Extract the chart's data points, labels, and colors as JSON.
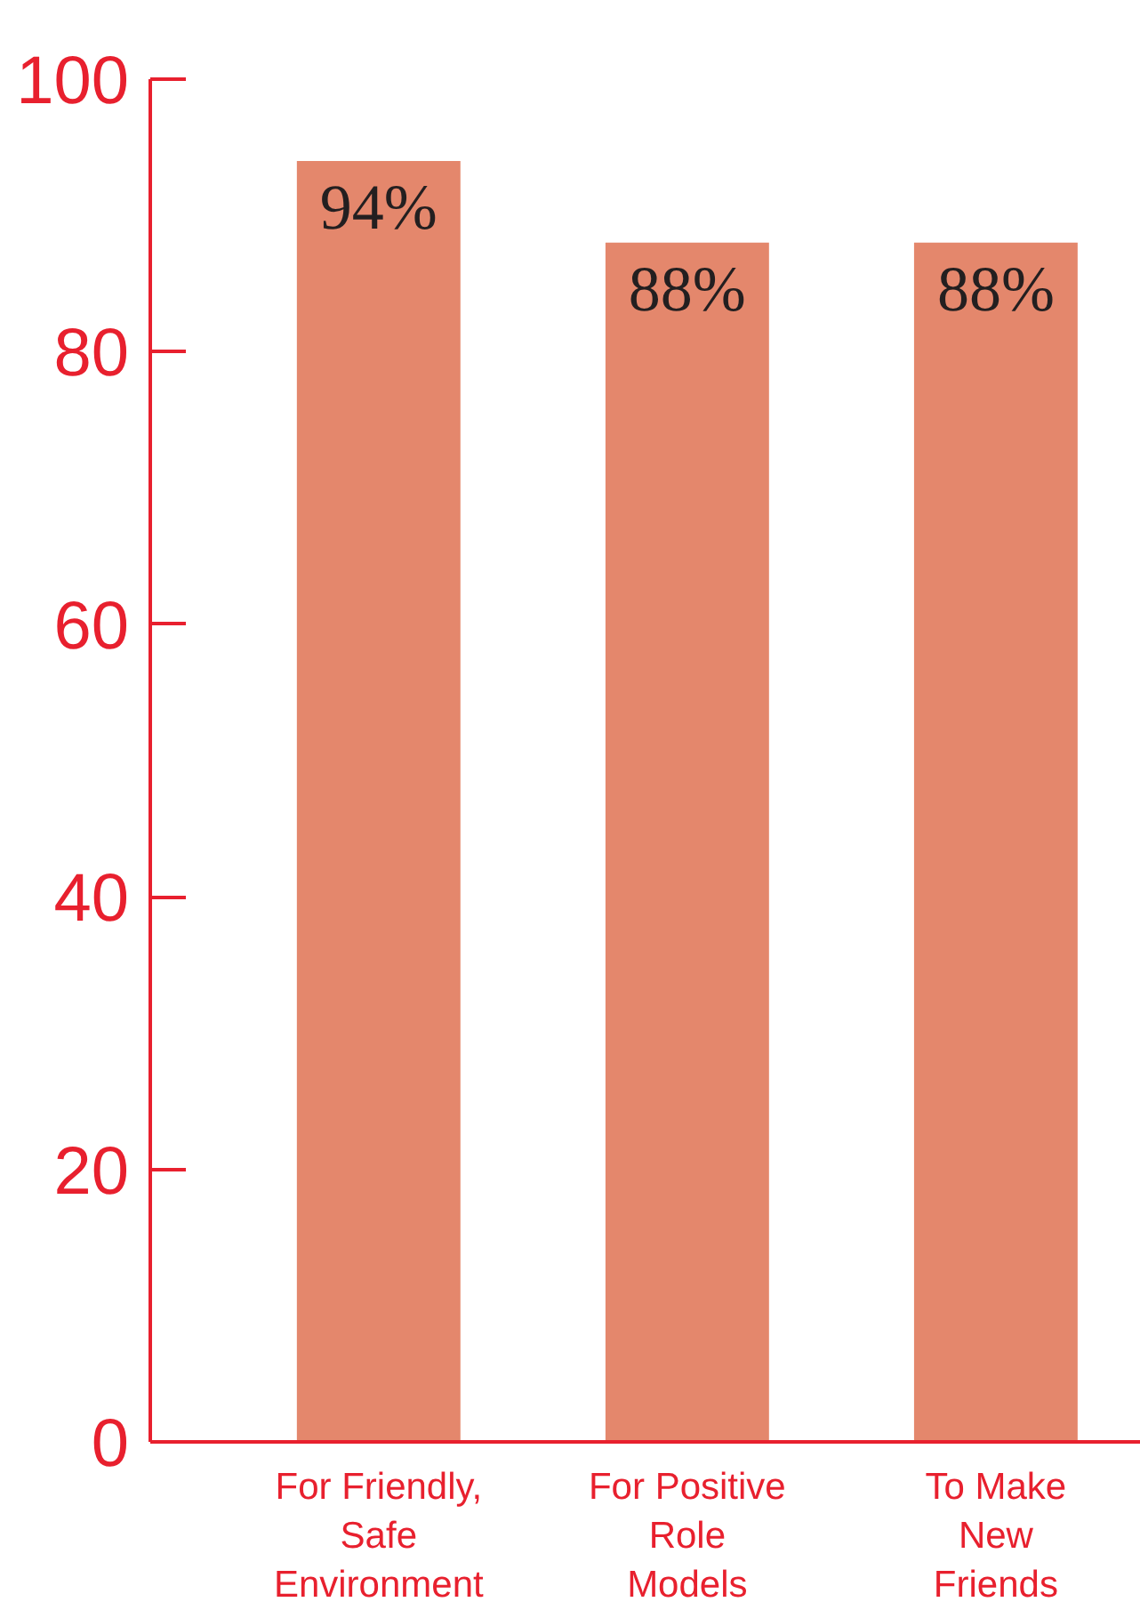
{
  "chart_data": {
    "type": "bar",
    "categories": [
      "For Friendly,\nSafe\nEnvironment",
      "For Positive\nRole\nModels",
      "To Make\nNew\nFriends"
    ],
    "values": [
      94,
      88,
      88
    ],
    "value_labels": [
      "94%",
      "88%",
      "88%"
    ],
    "color": "#e4876c",
    "ylim": [
      0,
      100
    ],
    "yticks": [
      0,
      20,
      40,
      60,
      80,
      100
    ],
    "grid": false
  }
}
